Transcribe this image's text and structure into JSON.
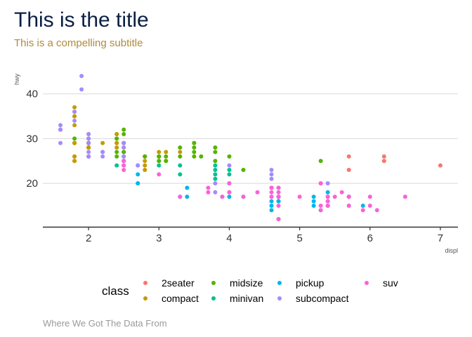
{
  "chart_data": {
    "type": "scatter",
    "title": "This is the title",
    "subtitle": "This is a compelling subtitle",
    "caption": "Where We Got The Data From",
    "xlabel": "displ",
    "ylabel": "hwy",
    "xlim": [
      1.35,
      7.25
    ],
    "ylim": [
      10.3,
      45.6
    ],
    "xticks": [
      2,
      3,
      4,
      5,
      6,
      7
    ],
    "yticks": [
      20,
      30,
      40
    ],
    "grid": "horizontal major only",
    "legend_title": "class",
    "legend_position": "bottom",
    "series": [
      {
        "name": "2seater",
        "color": "#F8766D",
        "points": [
          [
            5.7,
            26
          ],
          [
            5.7,
            23
          ],
          [
            6.2,
            26
          ],
          [
            6.2,
            25
          ],
          [
            7.0,
            24
          ]
        ]
      },
      {
        "name": "compact",
        "color": "#C49A00",
        "points": [
          [
            1.8,
            29
          ],
          [
            1.8,
            29
          ],
          [
            2.0,
            31
          ],
          [
            2.0,
            30
          ],
          [
            2.8,
            26
          ],
          [
            2.8,
            26
          ],
          [
            3.1,
            27
          ],
          [
            1.8,
            26
          ],
          [
            1.8,
            25
          ],
          [
            2.0,
            28
          ],
          [
            2.0,
            28
          ],
          [
            2.8,
            25
          ],
          [
            3.1,
            25
          ],
          [
            2.2,
            27
          ],
          [
            2.2,
            29
          ],
          [
            2.4,
            31
          ],
          [
            2.4,
            31
          ],
          [
            3.0,
            27
          ],
          [
            1.8,
            35
          ],
          [
            1.8,
            37
          ],
          [
            1.8,
            35
          ],
          [
            1.8,
            29
          ],
          [
            1.8,
            25
          ],
          [
            1.8,
            26
          ],
          [
            1.8,
            33
          ],
          [
            2.0,
            29
          ],
          [
            2.0,
            28
          ],
          [
            2.4,
            29
          ],
          [
            2.4,
            28
          ],
          [
            2.4,
            29
          ],
          [
            2.5,
            27
          ],
          [
            2.5,
            25
          ],
          [
            3.3,
            27
          ],
          [
            2.0,
            26
          ],
          [
            2.0,
            29
          ],
          [
            2.0,
            29
          ],
          [
            2.0,
            28
          ],
          [
            2.8,
            23
          ],
          [
            2.8,
            24
          ],
          [
            3.0,
            25
          ],
          [
            3.0,
            26
          ],
          [
            2.5,
            26
          ],
          [
            2.5,
            25
          ],
          [
            2.8,
            26
          ],
          [
            2.5,
            28
          ]
        ]
      },
      {
        "name": "midsize",
        "color": "#53B400",
        "points": [
          [
            2.8,
            26
          ],
          [
            3.1,
            25
          ],
          [
            4.2,
            23
          ],
          [
            2.4,
            27
          ],
          [
            2.4,
            30
          ],
          [
            3.1,
            26
          ],
          [
            3.5,
            29
          ],
          [
            3.6,
            26
          ],
          [
            2.4,
            30
          ],
          [
            3.0,
            26
          ],
          [
            3.3,
            28
          ],
          [
            3.3,
            26
          ],
          [
            3.5,
            26
          ],
          [
            2.0,
            29
          ],
          [
            2.5,
            29
          ],
          [
            2.5,
            27
          ],
          [
            3.0,
            26
          ],
          [
            3.0,
            26
          ],
          [
            3.5,
            29
          ],
          [
            1.8,
            30
          ],
          [
            2.4,
            26
          ],
          [
            2.5,
            29
          ],
          [
            2.5,
            32
          ],
          [
            2.5,
            31
          ],
          [
            3.0,
            25
          ],
          [
            3.5,
            27
          ],
          [
            3.5,
            28
          ],
          [
            4.0,
            26
          ],
          [
            5.3,
            25
          ],
          [
            3.8,
            27
          ],
          [
            3.8,
            25
          ],
          [
            3.8,
            28
          ]
        ]
      },
      {
        "name": "minivan",
        "color": "#00C094",
        "points": [
          [
            2.4,
            24
          ],
          [
            3.0,
            24
          ],
          [
            3.3,
            22
          ],
          [
            3.3,
            24
          ],
          [
            3.3,
            17
          ],
          [
            3.8,
            22
          ],
          [
            3.8,
            21
          ],
          [
            3.8,
            23
          ],
          [
            4.0,
            23
          ],
          [
            4.0,
            22
          ],
          [
            3.8,
            24
          ]
        ]
      },
      {
        "name": "pickup",
        "color": "#00B6EB",
        "points": [
          [
            2.7,
            20
          ],
          [
            2.7,
            20
          ],
          [
            2.7,
            22
          ],
          [
            3.4,
            19
          ],
          [
            3.4,
            17
          ],
          [
            4.7,
            17
          ],
          [
            4.7,
            12
          ],
          [
            4.7,
            19
          ],
          [
            5.2,
            17
          ],
          [
            5.7,
            17
          ],
          [
            5.9,
            15
          ],
          [
            4.7,
            17
          ],
          [
            5.2,
            15
          ],
          [
            3.9,
            17
          ],
          [
            4.7,
            17
          ],
          [
            4.7,
            17
          ],
          [
            5.2,
            16
          ],
          [
            5.7,
            15
          ],
          [
            4.0,
            20
          ],
          [
            4.2,
            17
          ],
          [
            4.6,
            15
          ],
          [
            5.4,
            15
          ],
          [
            4.0,
            17
          ],
          [
            4.7,
            16
          ],
          [
            4.6,
            16
          ],
          [
            5.3,
            14
          ],
          [
            5.4,
            18
          ],
          [
            4.7,
            16
          ],
          [
            4.6,
            14
          ]
        ]
      },
      {
        "name": "subcompact",
        "color": "#A58AFF",
        "points": [
          [
            1.6,
            33
          ],
          [
            1.6,
            32
          ],
          [
            1.6,
            32
          ],
          [
            1.6,
            29
          ],
          [
            1.6,
            32
          ],
          [
            1.8,
            34
          ],
          [
            1.8,
            36
          ],
          [
            1.8,
            36
          ],
          [
            2.0,
            29
          ],
          [
            2.0,
            26
          ],
          [
            2.0,
            27
          ],
          [
            2.0,
            30
          ],
          [
            2.0,
            31
          ],
          [
            2.0,
            26
          ],
          [
            2.0,
            26
          ],
          [
            1.9,
            44
          ],
          [
            1.9,
            41
          ],
          [
            2.5,
            28
          ],
          [
            2.5,
            29
          ],
          [
            2.5,
            26
          ],
          [
            2.2,
            26
          ],
          [
            2.7,
            24
          ],
          [
            2.7,
            24
          ],
          [
            4.6,
            23
          ],
          [
            4.6,
            21
          ],
          [
            5.4,
            20
          ],
          [
            3.8,
            20
          ],
          [
            3.8,
            18
          ],
          [
            4.6,
            19
          ],
          [
            4.0,
            24
          ],
          [
            4.6,
            22
          ],
          [
            2.2,
            27
          ],
          [
            2.5,
            26
          ],
          [
            2.5,
            25
          ],
          [
            2.5,
            24
          ],
          [
            3.3,
            17
          ]
        ]
      },
      {
        "name": "suv",
        "color": "#FB61D7",
        "points": [
          [
            5.3,
            20
          ],
          [
            5.3,
            15
          ],
          [
            5.3,
            20
          ],
          [
            5.7,
            17
          ],
          [
            6.0,
            17
          ],
          [
            5.7,
            17
          ],
          [
            5.3,
            14
          ],
          [
            6.5,
            17
          ],
          [
            3.7,
            19
          ],
          [
            3.7,
            18
          ],
          [
            3.9,
            17
          ],
          [
            4.7,
            18
          ],
          [
            4.7,
            17
          ],
          [
            4.7,
            12
          ],
          [
            5.7,
            15
          ],
          [
            6.1,
            14
          ],
          [
            4.0,
            18
          ],
          [
            4.2,
            17
          ],
          [
            4.4,
            18
          ],
          [
            4.6,
            19
          ],
          [
            5.4,
            15
          ],
          [
            5.4,
            16
          ],
          [
            5.4,
            17
          ],
          [
            4.0,
            20
          ],
          [
            5.0,
            17
          ],
          [
            5.7,
            17
          ],
          [
            4.7,
            17
          ],
          [
            2.5,
            23
          ],
          [
            2.5,
            25
          ],
          [
            2.5,
            24
          ],
          [
            3.0,
            22
          ],
          [
            4.7,
            19
          ],
          [
            4.6,
            17
          ],
          [
            4.6,
            19
          ],
          [
            5.4,
            15
          ],
          [
            5.4,
            17
          ],
          [
            5.6,
            18
          ],
          [
            5.9,
            14
          ],
          [
            6.0,
            15
          ],
          [
            4.6,
            18
          ],
          [
            5.5,
            17
          ],
          [
            3.3,
            17
          ],
          [
            4.7,
            15
          ],
          [
            4.7,
            17
          ],
          [
            5.4,
            16
          ],
          [
            4.6,
            17
          ],
          [
            4.6,
            19
          ],
          [
            4.0,
            18
          ]
        ]
      }
    ]
  }
}
